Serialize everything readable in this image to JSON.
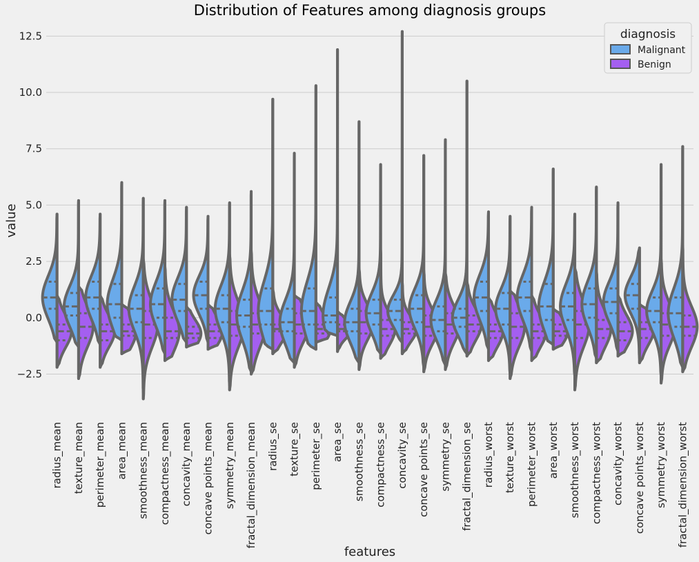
{
  "chart_data": {
    "type": "violin",
    "title": "Distribution of Features among diagnosis groups",
    "xlabel": "features",
    "ylabel": "value",
    "ylim": [
      -4.2,
      13.0
    ],
    "yticks": [
      -2.5,
      0.0,
      2.5,
      5.0,
      7.5,
      10.0,
      12.5
    ],
    "ytick_labels": [
      "−2.5",
      "0.0",
      "2.5",
      "5.0",
      "7.5",
      "10.0",
      "12.5"
    ],
    "grid": true,
    "split": true,
    "inner": "quartile",
    "legend": {
      "title": "diagnosis",
      "placement": "top-right",
      "entries": [
        {
          "label": "Malignant",
          "color": "#6aaaea"
        },
        {
          "label": "Benign",
          "color": "#a45ff0"
        }
      ]
    },
    "categories": [
      "radius_mean",
      "texture_mean",
      "perimeter_mean",
      "area_mean",
      "smoothness_mean",
      "compactness_mean",
      "concavity_mean",
      "concave points_mean",
      "symmetry_mean",
      "fractal_dimension_mean",
      "radius_se",
      "texture_se",
      "perimeter_se",
      "area_se",
      "smoothness_se",
      "compactness_se",
      "concavity_se",
      "concave points_se",
      "symmetry_se",
      "fractal_dimension_se",
      "radius_worst",
      "texture_worst",
      "perimeter_worst",
      "area_worst",
      "smoothness_worst",
      "compactness_worst",
      "concavity_worst",
      "concave points_worst",
      "symmetry_worst",
      "fractal_dimension_worst"
    ],
    "series": [
      {
        "name": "Malignant",
        "side": "left",
        "color": "#6aaaea",
        "min": [
          -1.1,
          -1.3,
          -1.2,
          -1.0,
          -3.3,
          -1.6,
          -1.1,
          -1.1,
          -3.0,
          -2.4,
          -1.4,
          -2.0,
          -1.4,
          -0.8,
          -2.0,
          -1.6,
          -1.1,
          -2.2,
          -2.1,
          -1.6,
          -1.4,
          -2.5,
          -1.5,
          -1.2,
          -2.6,
          -1.8,
          -1.5,
          -1.8,
          -2.6,
          -2.2
        ],
        "max": [
          4.6,
          5.2,
          4.6,
          6.0,
          5.3,
          5.2,
          4.9,
          4.5,
          5.1,
          5.6,
          9.7,
          7.3,
          10.3,
          11.9,
          8.7,
          6.8,
          12.7,
          7.2,
          7.9,
          10.5,
          4.7,
          4.5,
          4.9,
          6.6,
          4.6,
          5.8,
          5.1,
          3.1,
          6.8,
          7.6
        ],
        "q1": [
          0.4,
          0.1,
          0.4,
          0.0,
          -0.2,
          0.0,
          0.3,
          0.4,
          -0.2,
          -0.4,
          -0.3,
          -0.6,
          -0.3,
          -0.2,
          -0.6,
          -0.3,
          -0.1,
          -0.2,
          -0.6,
          -0.4,
          0.3,
          -0.3,
          0.3,
          -0.1,
          -0.1,
          0.0,
          0.2,
          0.4,
          -0.2,
          -0.4
        ],
        "median": [
          0.9,
          0.5,
          0.9,
          0.6,
          0.4,
          0.6,
          0.8,
          1.0,
          0.4,
          0.1,
          0.3,
          -0.2,
          0.3,
          0.1,
          -0.2,
          0.2,
          0.3,
          0.4,
          -0.1,
          0.0,
          0.9,
          0.4,
          0.9,
          0.5,
          0.5,
          0.6,
          0.7,
          1.0,
          0.3,
          0.2
        ],
        "q3": [
          1.6,
          1.1,
          1.6,
          1.5,
          1.0,
          1.3,
          1.5,
          1.6,
          1.0,
          0.8,
          1.3,
          0.4,
          1.3,
          0.9,
          0.4,
          0.8,
          0.8,
          1.0,
          0.5,
          0.4,
          1.6,
          1.1,
          1.6,
          1.5,
          1.1,
          1.3,
          1.3,
          1.5,
          0.9,
          0.9
        ],
        "spread": [
          0.95,
          0.9,
          0.95,
          1.1,
          1.0,
          1.0,
          0.95,
          0.85,
          1.0,
          1.1,
          1.3,
          1.0,
          1.3,
          1.2,
          0.9,
          0.9,
          0.7,
          0.9,
          0.9,
          0.8,
          1.0,
          0.9,
          1.0,
          1.1,
          1.0,
          1.0,
          0.9,
          0.8,
          0.9,
          1.1
        ]
      },
      {
        "name": "Benign",
        "side": "right",
        "color": "#a45ff0",
        "min": [
          -2.2,
          -2.7,
          -2.2,
          -1.6,
          -3.6,
          -1.9,
          -1.3,
          -1.4,
          -3.2,
          -2.5,
          -1.6,
          -2.2,
          -1.1,
          -1.5,
          -2.3,
          -1.8,
          -1.6,
          -2.4,
          -2.3,
          -1.7,
          -1.9,
          -2.7,
          -1.9,
          -1.4,
          -3.2,
          -2.0,
          -1.7,
          -2.0,
          -2.9,
          -2.4
        ],
        "max": [
          1.0,
          1.4,
          1.0,
          0.6,
          2.6,
          2.3,
          0.5,
          0.6,
          2.8,
          3.0,
          1.3,
          1.0,
          0.7,
          0.3,
          2.2,
          3.0,
          1.6,
          2.1,
          2.0,
          1.6,
          0.9,
          1.2,
          1.0,
          0.4,
          2.2,
          2.1,
          1.0,
          0.6,
          2.6,
          3.2
        ],
        "q1": [
          -1.0,
          -0.9,
          -1.0,
          -0.8,
          -0.9,
          -0.9,
          -0.9,
          -0.9,
          -0.8,
          -0.7,
          -0.6,
          -0.7,
          -0.7,
          -0.6,
          -0.7,
          -0.8,
          -0.7,
          -0.8,
          -0.7,
          -0.6,
          -0.9,
          -0.9,
          -0.9,
          -0.8,
          -0.9,
          -0.9,
          -1.0,
          -0.9,
          -0.8,
          -0.8
        ],
        "median": [
          -0.6,
          -0.4,
          -0.6,
          -0.6,
          -0.3,
          -0.6,
          -0.7,
          -0.6,
          -0.3,
          -0.3,
          -0.5,
          -0.3,
          -0.5,
          -0.5,
          -0.2,
          -0.5,
          -0.5,
          -0.4,
          -0.3,
          -0.3,
          -0.6,
          -0.4,
          -0.6,
          -0.6,
          -0.3,
          -0.5,
          -0.6,
          -0.5,
          -0.3,
          -0.4
        ],
        "q3": [
          -0.3,
          0.2,
          -0.3,
          -0.3,
          0.3,
          0.0,
          -0.4,
          -0.3,
          0.3,
          0.2,
          -0.3,
          0.2,
          -0.3,
          -0.3,
          0.3,
          -0.1,
          -0.2,
          0.1,
          0.2,
          0.1,
          -0.3,
          0.2,
          -0.3,
          -0.3,
          0.3,
          -0.1,
          -0.2,
          -0.2,
          0.2,
          0.1
        ],
        "spread": [
          0.7,
          0.9,
          0.7,
          0.75,
          1.0,
          0.9,
          0.6,
          0.65,
          1.0,
          1.0,
          0.6,
          0.8,
          0.6,
          0.4,
          0.75,
          0.7,
          0.55,
          0.75,
          0.8,
          0.7,
          0.7,
          0.9,
          0.7,
          0.6,
          1.0,
          0.8,
          0.7,
          0.7,
          0.9,
          0.9
        ]
      }
    ]
  }
}
